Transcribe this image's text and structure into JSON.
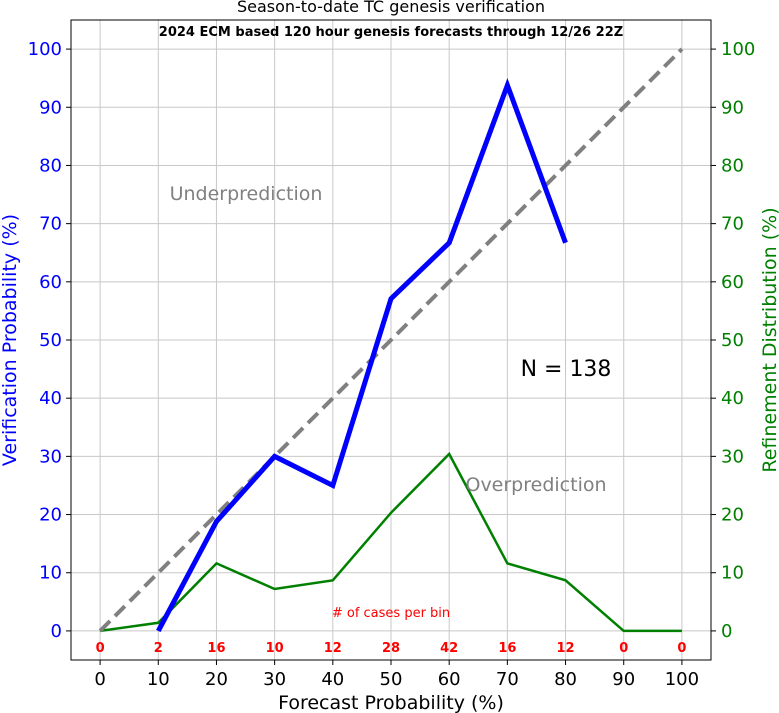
{
  "chart_data": {
    "type": "line",
    "title": "Season-to-date TC genesis verification",
    "subtitle": "2024 ECM based 120 hour genesis forecasts through 12/26 22Z",
    "xlabel": "Forecast Probability (%)",
    "ylabel_left": "Verification Probability (%)",
    "ylabel_right": "Refinement Distribution (%)",
    "xlim": [
      -5,
      105
    ],
    "ylim": [
      -5,
      105
    ],
    "grid": true,
    "x_ticks": [
      "0",
      "10",
      "20",
      "30",
      "40",
      "50",
      "60",
      "70",
      "80",
      "90",
      "100"
    ],
    "y_ticks": [
      "0",
      "10",
      "20",
      "30",
      "40",
      "50",
      "60",
      "70",
      "80",
      "90",
      "100"
    ],
    "series": [
      {
        "key": "verification",
        "color": "#0000ff",
        "style": "solid-thick",
        "x": [
          10,
          20,
          30,
          40,
          50,
          60,
          70,
          80
        ],
        "y": [
          0,
          18.8,
          30,
          25,
          57.1,
          66.7,
          93.8,
          66.7
        ]
      },
      {
        "key": "perfect-reliability",
        "color": "#808080",
        "style": "dashed",
        "x": [
          0,
          100
        ],
        "y": [
          0,
          100
        ]
      },
      {
        "key": "refinement",
        "color": "#008000",
        "style": "solid",
        "x": [
          0,
          10,
          20,
          30,
          40,
          50,
          60,
          70,
          80,
          90,
          100
        ],
        "y": [
          0,
          1.4,
          11.6,
          7.2,
          8.7,
          20.3,
          30.4,
          11.6,
          8.7,
          0,
          0
        ]
      }
    ],
    "annotations": {
      "underprediction": "Underprediction",
      "overprediction": "Overprediction",
      "n_label": "N = 138",
      "cases_label": "# of cases per bin"
    },
    "bin_counts": [
      "0",
      "2",
      "16",
      "10",
      "12",
      "28",
      "42",
      "16",
      "12",
      "0",
      "0"
    ],
    "colors": {
      "left_axis": "#0000ff",
      "right_axis": "#008000",
      "counts": "#ff0000",
      "grid": "#c8c8c8"
    }
  }
}
